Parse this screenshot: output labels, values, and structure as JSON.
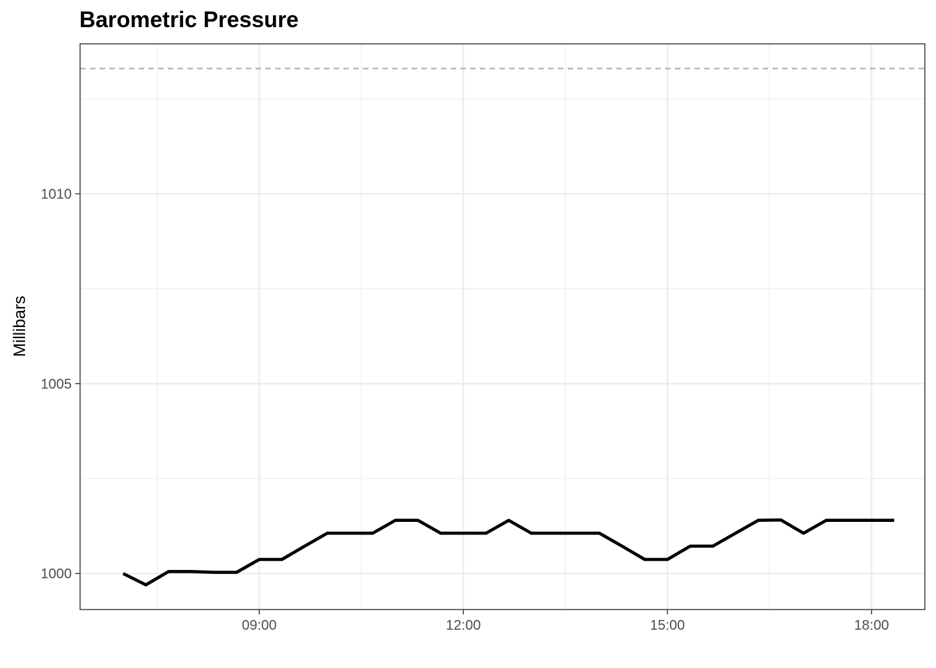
{
  "chart_data": {
    "type": "line",
    "title": "Barometric Pressure",
    "xlabel": "",
    "ylabel": "Millibars",
    "x_ticks": [
      {
        "label": "09:00",
        "value": "09:00"
      },
      {
        "label": "12:00",
        "value": "12:00"
      },
      {
        "label": "15:00",
        "value": "15:00"
      },
      {
        "label": "18:00",
        "value": "18:00"
      }
    ],
    "y_ticks": [
      1000,
      1005,
      1010
    ],
    "xlim": [
      "06:22",
      "18:47"
    ],
    "ylim": [
      999.05,
      1013.95
    ],
    "grid": true,
    "reference_line": {
      "y": 1013.3,
      "style": "dashed",
      "color": "#b3b3b3"
    },
    "series": [
      {
        "color": "#000000",
        "x": [
          "07:00",
          "07:20",
          "07:40",
          "08:00",
          "08:20",
          "08:40",
          "09:00",
          "09:20",
          "09:40",
          "10:00",
          "10:20",
          "10:40",
          "11:00",
          "11:20",
          "11:40",
          "12:00",
          "12:20",
          "12:40",
          "13:00",
          "13:20",
          "13:40",
          "14:00",
          "14:20",
          "14:40",
          "15:00",
          "15:20",
          "15:40",
          "16:00",
          "16:20",
          "16:40",
          "17:00",
          "17:20",
          "17:40",
          "18:00",
          "18:20"
        ],
        "values": [
          1000.0,
          999.7,
          1000.05,
          1000.05,
          1000.03,
          1000.03,
          1000.37,
          1000.37,
          1000.72,
          1001.06,
          1001.06,
          1001.06,
          1001.4,
          1001.4,
          1001.06,
          1001.06,
          1001.06,
          1001.4,
          1001.06,
          1001.06,
          1001.06,
          1001.06,
          1000.72,
          1000.37,
          1000.37,
          1000.72,
          1000.72,
          1001.06,
          1001.4,
          1001.41,
          1001.06,
          1001.4,
          1001.4,
          1001.4,
          1001.4
        ]
      }
    ]
  }
}
